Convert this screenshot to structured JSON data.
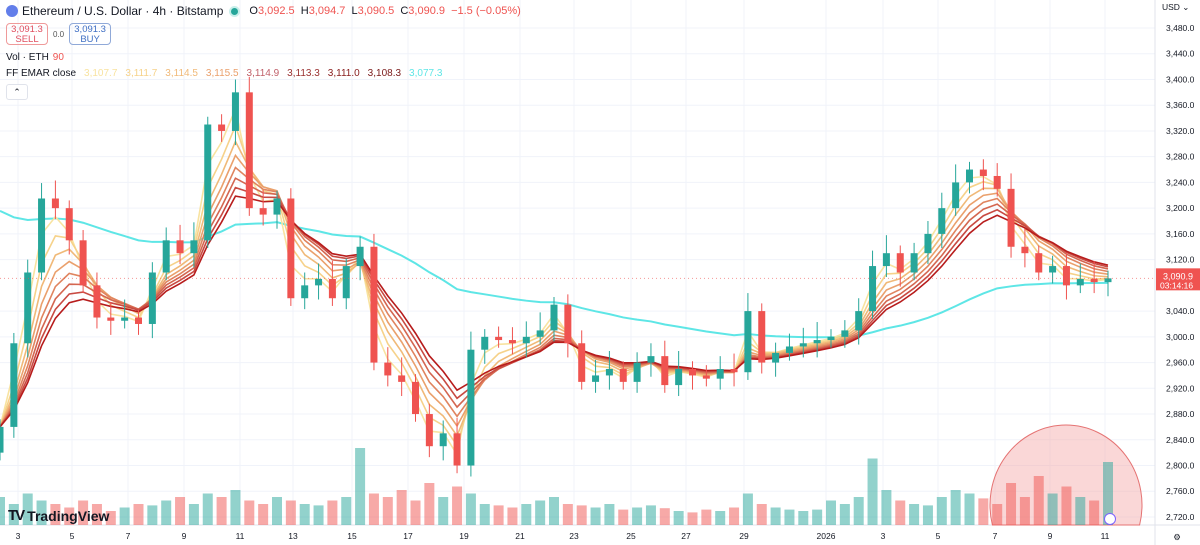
{
  "header": {
    "symbol_title": "Ethereum / U.S. Dollar · 4h · Bitstamp",
    "ohlc": {
      "o_label": "O",
      "o": "3,092.5",
      "h_label": "H",
      "h": "3,094.7",
      "l_label": "L",
      "l": "3,090.5",
      "c_label": "C",
      "c": "3,090.9",
      "change": "−1.5 (−0.05%)"
    },
    "sell": {
      "price": "3,091.3",
      "label": "SELL"
    },
    "spread": "0.0",
    "buy": {
      "price": "3,091.3",
      "label": "BUY"
    },
    "volume": {
      "label": "Vol · ETH",
      "value": "90"
    },
    "ema": {
      "label": "FF EMAR close",
      "values": [
        "3,107.7",
        "3,111.7",
        "3,114.5",
        "3,115.5",
        "3,114.9",
        "3,113.3",
        "3,111.0",
        "3,108.3",
        "3,077.3"
      ]
    },
    "collapse_icon": "chevron-up-icon"
  },
  "price_axis": {
    "currency": "USD",
    "current_price": "3,090.9",
    "countdown": "03:14:16"
  },
  "branding": "TradingView",
  "colors": {
    "up": "#26a69a",
    "down": "#ef5350",
    "slow_ema": "#5ee6e6",
    "ribbon_light": "#f8dc8c",
    "ribbon_dark": "#b71c1c",
    "highlight": "#f4a6a6"
  },
  "chart_data": {
    "type": "candlestick",
    "interval": "4h",
    "x_tick_labels": [
      "3",
      "5",
      "7",
      "9",
      "11",
      "13",
      "15",
      "17",
      "19",
      "21",
      "23",
      "25",
      "27",
      "29",
      "2026",
      "3",
      "5",
      "7",
      "9",
      "11"
    ],
    "y_tick_labels": [
      "3,480.0",
      "3,440.0",
      "3,400.0",
      "3,360.0",
      "3,320.0",
      "3,280.0",
      "3,240.0",
      "3,200.0",
      "3,160.0",
      "3,120.0",
      "3,040.0",
      "3,000.0",
      "2,960.0",
      "2,920.0",
      "2,880.0",
      "2,840.0",
      "2,800.0",
      "2,760.0",
      "2,720.0"
    ],
    "ylim": [
      2700,
      3500
    ],
    "approx_closes": [
      2860,
      2990,
      3100,
      3215,
      3200,
      3150,
      3080,
      3030,
      3025,
      3030,
      3020,
      3100,
      3150,
      3130,
      3150,
      3330,
      3320,
      3380,
      3200,
      3190,
      3215,
      3060,
      3080,
      3090,
      3060,
      3110,
      3140,
      2960,
      2940,
      2930,
      2880,
      2830,
      2850,
      2800,
      2980,
      3000,
      2995,
      2990,
      3000,
      3010,
      3050,
      2990,
      2930,
      2940,
      2950,
      2930,
      2960,
      2970,
      2925,
      2950,
      2940,
      2935,
      2950,
      2945,
      3040,
      2960,
      2975,
      2985,
      2990,
      2995,
      3000,
      3010,
      3040,
      3110,
      3130,
      3100,
      3130,
      3160,
      3200,
      3240,
      3260,
      3250,
      3230,
      3140,
      3130,
      3100,
      3110,
      3080,
      3090,
      3085,
      3090.9
    ],
    "approx_volume": [
      40,
      30,
      45,
      35,
      30,
      25,
      35,
      30,
      20,
      25,
      30,
      28,
      35,
      40,
      30,
      45,
      40,
      50,
      35,
      30,
      40,
      35,
      30,
      28,
      35,
      40,
      110,
      45,
      40,
      50,
      35,
      60,
      40,
      55,
      45,
      30,
      28,
      25,
      30,
      35,
      40,
      30,
      28,
      25,
      30,
      22,
      25,
      28,
      24,
      20,
      18,
      22,
      20,
      25,
      45,
      30,
      25,
      22,
      20,
      22,
      35,
      30,
      40,
      95,
      50,
      35,
      30,
      28,
      40,
      50,
      45,
      38,
      30,
      60,
      40,
      70,
      45,
      55,
      40,
      35,
      90
    ],
    "grid": true,
    "legend_position": "top-left"
  }
}
